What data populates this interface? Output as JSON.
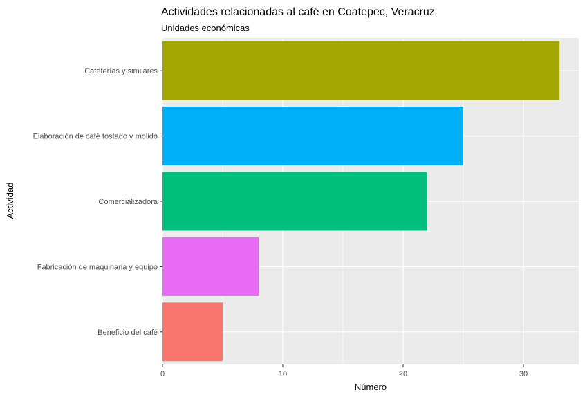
{
  "chart_data": {
    "type": "bar",
    "orientation": "horizontal",
    "title": "Actividades relacionadas al café en Coatepec, Veracruz",
    "subtitle": "Unidades económicas",
    "xlabel": "Número",
    "ylabel": "Actividad",
    "xlim": [
      0,
      34.6
    ],
    "x_ticks": [
      0,
      10,
      20,
      30
    ],
    "x_tick_labels": [
      "0",
      "10",
      "20",
      "30"
    ],
    "grid": true,
    "legend": "none",
    "panel_background": "#ebebeb",
    "grid_color": "#ffffff",
    "categories": [
      "Cafeterías y similares",
      "Elaboración de café tostado y molido",
      "Comercializadora",
      "Fabricación de maquinaria y equipo",
      "Beneficio del café"
    ],
    "values": [
      33,
      25,
      22,
      8,
      5
    ],
    "colors": [
      "#a3a500",
      "#00b0f6",
      "#00bf7d",
      "#e76bf3",
      "#f8766d"
    ]
  }
}
